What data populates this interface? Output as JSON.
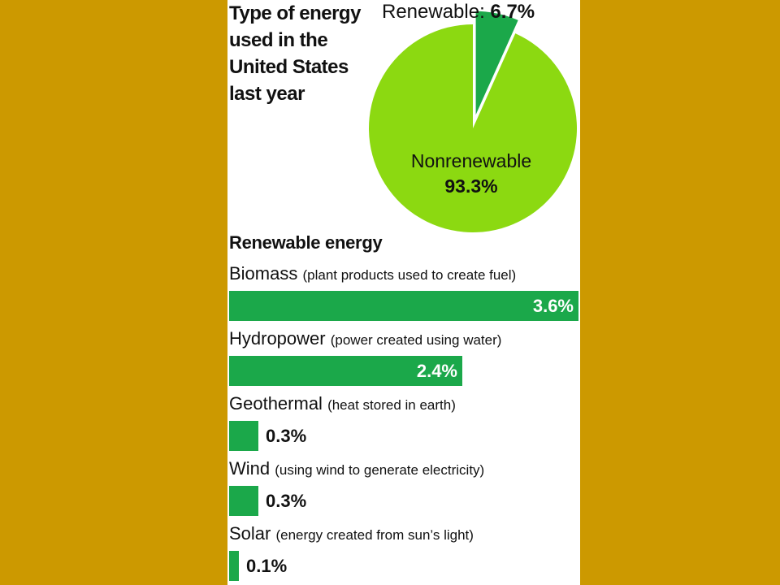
{
  "chart_data": [
    {
      "type": "pie",
      "title": "Type of energy used in the United States last year",
      "slices": [
        {
          "label": "Renewable:",
          "value": 6.7,
          "display": "6.7%",
          "color": "#1ba84a"
        },
        {
          "label": "Nonrenewable",
          "value": 93.3,
          "display": "93.3%",
          "color": "#8cd911"
        }
      ]
    },
    {
      "type": "bar",
      "title": "Renewable energy",
      "orientation": "horizontal",
      "bar_color": "#1ba84a",
      "max": 3.6,
      "bars": [
        {
          "name": "Biomass",
          "desc": "(plant products used to create fuel)",
          "value": 3.6,
          "display": "3.6%"
        },
        {
          "name": "Hydropower",
          "desc": "(power created using water)",
          "value": 2.4,
          "display": "2.4%"
        },
        {
          "name": "Geothermal",
          "desc": "(heat stored in earth)",
          "value": 0.3,
          "display": "0.3%"
        },
        {
          "name": "Wind",
          "desc": "(using wind to generate electricity)",
          "value": 0.3,
          "display": "0.3%"
        },
        {
          "name": "Solar",
          "desc": "(energy created from sun’s light)",
          "value": 0.1,
          "display": "0.1%"
        }
      ]
    }
  ]
}
